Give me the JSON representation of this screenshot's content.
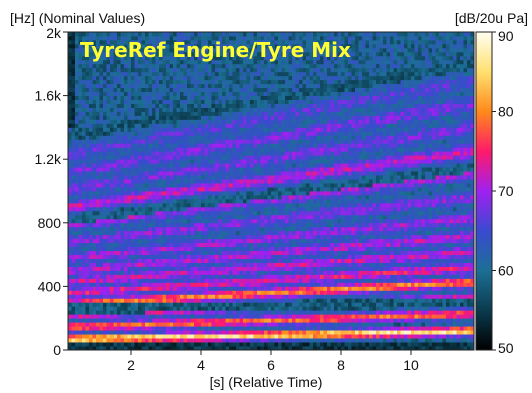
{
  "chart_data": {
    "type": "heatmap",
    "title": "TyreRef Engine/Tyre Mix",
    "ylabel": "[Hz] (Nominal Values)",
    "xlabel": "[s] (Relative Time)",
    "colorbar_label": "[dB/20u Pa]",
    "xlim": [
      0.2,
      11.8
    ],
    "ylim": [
      0,
      2000
    ],
    "x_ticks": [
      2,
      4,
      6,
      8,
      10
    ],
    "x_tick_labels": [
      "2",
      "4",
      "6",
      "8",
      "10"
    ],
    "y_ticks": [
      0,
      400,
      800,
      1200,
      1600,
      2000
    ],
    "y_tick_labels": [
      "0",
      "400",
      "800",
      "1.2k",
      "1.6k",
      "2k"
    ],
    "colorbar_range": [
      50,
      90
    ],
    "colorbar_ticks": [
      50,
      60,
      70,
      80,
      90
    ],
    "colorbar_tick_labels": [
      "50",
      "60",
      "70",
      "80",
      "90"
    ],
    "colorscale": [
      [
        50,
        "#000000"
      ],
      [
        55,
        "#0b3b4e"
      ],
      [
        60,
        "#1c6f95"
      ],
      [
        65,
        "#3a4ad0"
      ],
      [
        70,
        "#a020f0"
      ],
      [
        75,
        "#ff1a6a"
      ],
      [
        80,
        "#ff8a1a"
      ],
      [
        85,
        "#ffe070"
      ],
      [
        90,
        "#fffff0"
      ]
    ],
    "base_level": 60,
    "harmonic_bands": [
      {
        "f_start": 70,
        "f_end": 120,
        "level": 86
      },
      {
        "f_start": 145,
        "f_end": 230,
        "level": 79
      },
      {
        "f_start": 220,
        "f_end": 330,
        "level": 74
      },
      {
        "f_start": 290,
        "f_end": 430,
        "level": 80
      },
      {
        "f_start": 360,
        "f_end": 520,
        "level": 74
      },
      {
        "f_start": 430,
        "f_end": 620,
        "level": 72
      },
      {
        "f_start": 500,
        "f_end": 720,
        "level": 71
      },
      {
        "f_start": 580,
        "f_end": 830,
        "level": 70
      },
      {
        "f_start": 680,
        "f_end": 960,
        "level": 69
      },
      {
        "f_start": 790,
        "f_end": 1110,
        "level": 70
      },
      {
        "f_start": 900,
        "f_end": 1250,
        "level": 72
      },
      {
        "f_start": 1010,
        "f_end": 1400,
        "level": 68
      },
      {
        "f_start": 1120,
        "f_end": 1550,
        "level": 68
      },
      {
        "f_start": 1230,
        "f_end": 1700,
        "level": 66
      }
    ],
    "dark_bands": [
      {
        "f_start": 260,
        "f_end": 300,
        "level": 55
      },
      {
        "f_start": 820,
        "f_end": 1150,
        "level": 56
      },
      {
        "f_start": 1350,
        "f_end": 1800,
        "level": 55
      }
    ],
    "grid": false
  }
}
